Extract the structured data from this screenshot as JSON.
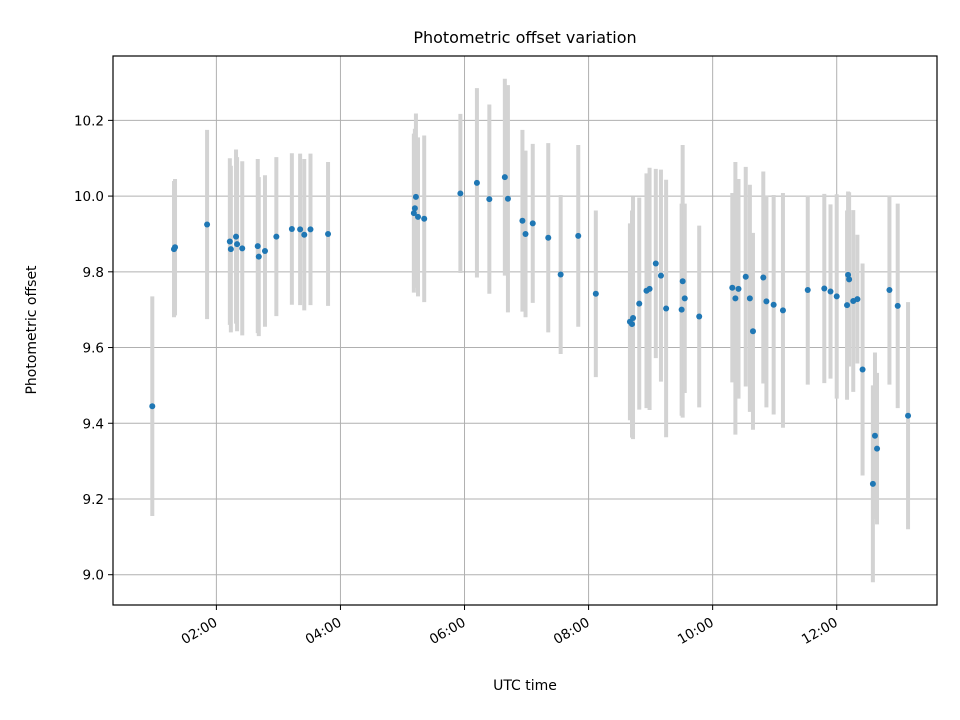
{
  "chart_data": {
    "type": "scatter",
    "title": "Photometric offset variation",
    "xlabel": "UTC time",
    "ylabel": "Photometric offset",
    "x_ticks": [
      "02:00",
      "04:00",
      "06:00",
      "08:00",
      "10:00",
      "12:00"
    ],
    "y_ticks": [
      "9.0",
      "9.2",
      "9.4",
      "9.6",
      "9.8",
      "10.0",
      "10.2"
    ],
    "xlim": [
      "00:20",
      "13:37"
    ],
    "ylim": [
      8.92,
      10.37
    ],
    "grid": true,
    "colors": {
      "points": "#1f77b4",
      "errorbars": "#d3d3d3",
      "grid": "#b0b0b0"
    },
    "series": [
      {
        "x": [
          "00:58",
          "01:19",
          "01:20",
          "01:51",
          "02:13",
          "02:14",
          "02:19",
          "02:20",
          "02:25",
          "02:40",
          "02:41",
          "02:47",
          "02:58",
          "03:13",
          "03:21",
          "03:25",
          "03:31",
          "03:48",
          "05:11",
          "05:12",
          "05:13",
          "05:15",
          "05:21",
          "05:56",
          "06:12",
          "06:24",
          "06:39",
          "06:42",
          "06:56",
          "06:59",
          "07:06",
          "07:21",
          "07:33",
          "07:50",
          "08:07",
          "08:40",
          "08:42",
          "08:43",
          "08:49",
          "08:56",
          "08:59",
          "09:05",
          "09:10",
          "09:15",
          "09:30",
          "09:31",
          "09:33",
          "09:47",
          "10:19",
          "10:22",
          "10:25",
          "10:32",
          "10:36",
          "10:39",
          "10:49",
          "10:52",
          "10:59",
          "11:08",
          "11:32",
          "11:48",
          "11:54",
          "12:00",
          "12:10",
          "12:11",
          "12:12",
          "12:16",
          "12:20",
          "12:25",
          "12:35",
          "12:37",
          "12:39",
          "12:51",
          "12:59",
          "13:09"
        ],
        "y": [
          9.445,
          9.86,
          9.865,
          9.925,
          9.88,
          9.86,
          9.893,
          9.873,
          9.862,
          9.868,
          9.84,
          9.855,
          9.893,
          9.913,
          9.912,
          9.898,
          9.912,
          9.9,
          9.955,
          9.968,
          9.998,
          9.945,
          9.94,
          10.007,
          10.035,
          9.992,
          10.05,
          9.993,
          9.935,
          9.9,
          9.928,
          9.89,
          9.793,
          9.895,
          9.742,
          9.668,
          9.662,
          9.678,
          9.716,
          9.75,
          9.755,
          9.822,
          9.79,
          9.703,
          9.7,
          9.775,
          9.73,
          9.682,
          9.758,
          9.73,
          9.755,
          9.787,
          9.73,
          9.643,
          9.785,
          9.722,
          9.713,
          9.698,
          9.752,
          9.756,
          9.748,
          9.735,
          9.712,
          9.792,
          9.78,
          9.723,
          9.728,
          9.542,
          9.24,
          9.367,
          9.333,
          9.752,
          9.71,
          9.42
        ],
        "yerr": [
          0.29,
          0.18,
          0.18,
          0.25,
          0.22,
          0.22,
          0.23,
          0.23,
          0.23,
          0.23,
          0.21,
          0.2,
          0.21,
          0.2,
          0.2,
          0.2,
          0.2,
          0.19,
          0.21,
          0.21,
          0.22,
          0.21,
          0.22,
          0.21,
          0.25,
          0.25,
          0.26,
          0.3,
          0.24,
          0.22,
          0.21,
          0.25,
          0.21,
          0.24,
          0.22,
          0.26,
          0.3,
          0.32,
          0.28,
          0.31,
          0.32,
          0.25,
          0.28,
          0.34,
          0.28,
          0.36,
          0.25,
          0.24,
          0.25,
          0.36,
          0.29,
          0.29,
          0.3,
          0.26,
          0.28,
          0.28,
          0.29,
          0.31,
          0.25,
          0.25,
          0.23,
          0.27,
          0.25,
          0.22,
          0.23,
          0.24,
          0.17,
          0.28,
          0.26,
          0.22,
          0.2,
          0.25,
          0.27,
          0.3
        ]
      }
    ]
  }
}
